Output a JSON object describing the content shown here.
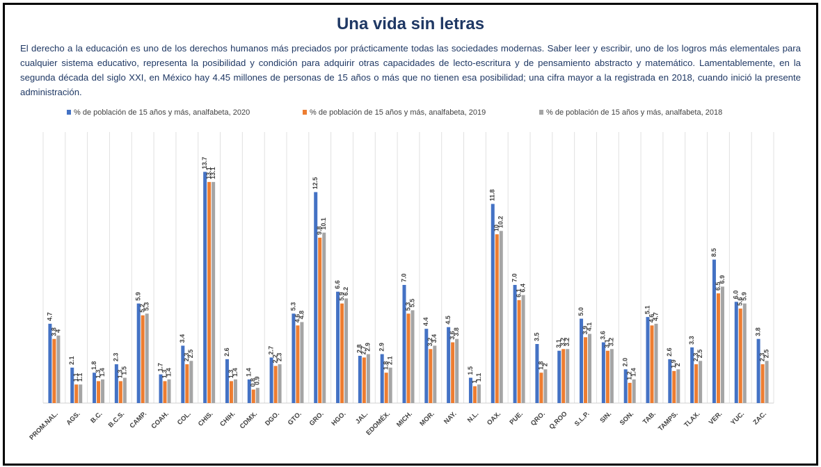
{
  "chart_data": {
    "type": "bar",
    "title": "Una vida sin letras",
    "subtitle": "El derecho a la educación es uno de los derechos humanos más preciados por prácticamente todas las sociedades modernas. Saber leer y escribir, uno de los logros más elementales para cualquier sistema educativo, representa la posibilidad y condición para adquirir otras capacidades de lecto-escritura y de pensamiento abstracto y matemático. Lamentablemente, en la segunda década del siglo XXI, en México hay 4.45 millones de personas de 15 años o más que no tienen esa posibilidad; una cifra mayor a la registrada en 2018, cuando inició la presente administración.",
    "categories": [
      "PROM.NAL.",
      "AGS.",
      "B.C.",
      "B.C.S.",
      "CAMP.",
      "COAH.",
      "COL.",
      "CHIS.",
      "CHIH.",
      "CDMX.",
      "DGO.",
      "GTO.",
      "GRO.",
      "HGO.",
      "JAL.",
      "EDOMÉX.",
      "MICH.",
      "MOR.",
      "NAY.",
      "N.L.",
      "OAX.",
      "PUE.",
      "QRO.",
      "Q.ROO",
      "S.L.P.",
      "SIN.",
      "SON.",
      "TAB.",
      "TAMPS.",
      "TLAX.",
      "VER.",
      "YUC.",
      "ZAC."
    ],
    "series": [
      {
        "name": "% de población de 15 años y más, analfabeta, 2020",
        "color": "#4472c4",
        "values": [
          4.7,
          2.1,
          1.8,
          2.3,
          5.9,
          1.7,
          3.4,
          13.7,
          2.6,
          1.4,
          2.7,
          5.3,
          12.5,
          6.6,
          2.8,
          2.9,
          7.0,
          4.4,
          4.5,
          1.5,
          11.8,
          7.0,
          3.5,
          3.1,
          5.0,
          3.6,
          2.0,
          5.1,
          2.6,
          3.3,
          8.5,
          6.0,
          3.8
        ],
        "value_labels": [
          "4.7",
          "2.1",
          "1.8",
          "2.3",
          "5.9",
          "1.7",
          "3.4",
          "13.7",
          "2.6",
          "1.4",
          "2.7",
          "5.3",
          "12.5",
          "6.6",
          "2.8",
          "2.9",
          "7.0",
          "4.4",
          "4.5",
          "1.5",
          "11.8",
          "7.0",
          "3.5",
          "3.1",
          "5.0",
          "3.6",
          "2.0",
          "5.1",
          "2.6",
          "3.3",
          "8.5",
          "6.0",
          "3.8"
        ]
      },
      {
        "name": "% de población de 15 años y más, analfabeta, 2019",
        "color": "#ed7d31",
        "values": [
          3.8,
          1.1,
          1.3,
          1.3,
          5.2,
          1.3,
          2.3,
          13.1,
          1.3,
          0.8,
          2.2,
          4.6,
          9.8,
          5.9,
          2.7,
          1.8,
          5.3,
          3.2,
          3.6,
          1.0,
          10.0,
          6.1,
          1.8,
          3.2,
          3.9,
          3.1,
          1.2,
          4.6,
          1.9,
          2.3,
          6.5,
          5.6,
          2.3
        ],
        "value_labels": [
          "3.8",
          "1.1",
          "1.3",
          "1.3",
          "5.2",
          "1.3",
          "2.3",
          "13.1",
          "1.3",
          "0.8",
          "2.2",
          "4.6",
          "9.8",
          "5.9",
          "2.7",
          "1.8",
          "5.3",
          "3.2",
          "3.6",
          "1",
          "10",
          "6.1",
          "1.8",
          "3.2",
          "3.9",
          "3.1",
          "1.2",
          "4.6",
          "1.9",
          "2.3",
          "6.5",
          "5.6",
          "2.3"
        ]
      },
      {
        "name": "% de población de 15 años y más, analfabeta, 2018",
        "color": "#a5a5a5",
        "values": [
          4.0,
          1.1,
          1.4,
          1.5,
          5.3,
          1.4,
          2.5,
          13.1,
          1.4,
          0.9,
          2.3,
          4.8,
          10.1,
          6.2,
          2.9,
          2.1,
          5.5,
          3.4,
          3.8,
          1.1,
          10.2,
          6.4,
          2.0,
          3.2,
          4.1,
          3.2,
          1.4,
          4.7,
          2.0,
          2.5,
          6.9,
          5.9,
          2.5
        ],
        "value_labels": [
          "4",
          "1.1",
          "1.4",
          "1.5",
          "5.3",
          "1.4",
          "2.5",
          "13.1",
          "1.4",
          "0.9",
          "2.3",
          "4.8",
          "10.1",
          "6.2",
          "2.9",
          "2.1",
          "5.5",
          "3.4",
          "3.8",
          "1.1",
          "10.2",
          "6.4",
          "2",
          "3.2",
          "4.1",
          "3.2",
          "1.4",
          "4.7",
          "2",
          "2.5",
          "6.9",
          "5.9",
          "2.5"
        ]
      }
    ],
    "ylim": [
      0,
      14
    ],
    "grid": true,
    "legend": "top"
  }
}
